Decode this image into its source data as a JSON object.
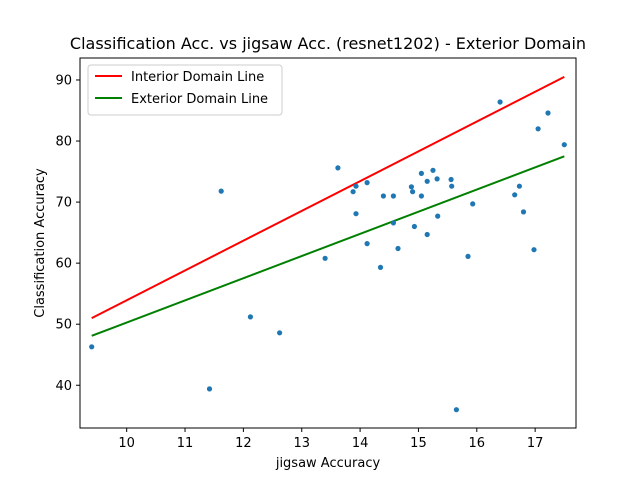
{
  "chart_data": {
    "type": "scatter",
    "title": "Classification Acc. vs jigsaw Acc. (resnet1202) - Exterior Domain",
    "xlabel": "jigsaw Accuracy",
    "ylabel": "Classification Accuracy",
    "xlim": [
      9.2,
      17.7
    ],
    "ylim": [
      33.0,
      93.6
    ],
    "xticks": [
      10,
      11,
      12,
      13,
      14,
      15,
      16,
      17
    ],
    "yticks": [
      40,
      50,
      60,
      70,
      80,
      90
    ],
    "grid": false,
    "legend_position": "top-left",
    "points_color": "#1f77b4",
    "points": [
      {
        "x": 9.4,
        "y": 46.3
      },
      {
        "x": 11.42,
        "y": 39.4
      },
      {
        "x": 11.62,
        "y": 71.8
      },
      {
        "x": 12.12,
        "y": 51.2
      },
      {
        "x": 12.62,
        "y": 48.6
      },
      {
        "x": 13.4,
        "y": 60.8
      },
      {
        "x": 13.62,
        "y": 75.6
      },
      {
        "x": 13.88,
        "y": 71.7
      },
      {
        "x": 13.93,
        "y": 72.6
      },
      {
        "x": 13.93,
        "y": 68.1
      },
      {
        "x": 14.12,
        "y": 73.2
      },
      {
        "x": 14.12,
        "y": 63.2
      },
      {
        "x": 14.35,
        "y": 59.3
      },
      {
        "x": 14.4,
        "y": 71.0
      },
      {
        "x": 14.57,
        "y": 71.0
      },
      {
        "x": 14.57,
        "y": 66.6
      },
      {
        "x": 14.65,
        "y": 62.4
      },
      {
        "x": 14.88,
        "y": 72.5
      },
      {
        "x": 14.9,
        "y": 71.7
      },
      {
        "x": 14.93,
        "y": 66.0
      },
      {
        "x": 15.05,
        "y": 74.7
      },
      {
        "x": 15.05,
        "y": 71.0
      },
      {
        "x": 15.15,
        "y": 73.4
      },
      {
        "x": 15.15,
        "y": 64.7
      },
      {
        "x": 15.25,
        "y": 75.2
      },
      {
        "x": 15.32,
        "y": 73.8
      },
      {
        "x": 15.33,
        "y": 67.7
      },
      {
        "x": 15.56,
        "y": 73.7
      },
      {
        "x": 15.57,
        "y": 72.6
      },
      {
        "x": 15.65,
        "y": 36.0
      },
      {
        "x": 15.85,
        "y": 61.1
      },
      {
        "x": 15.93,
        "y": 69.7
      },
      {
        "x": 16.4,
        "y": 86.4
      },
      {
        "x": 16.65,
        "y": 71.2
      },
      {
        "x": 16.73,
        "y": 72.6
      },
      {
        "x": 16.8,
        "y": 68.4
      },
      {
        "x": 16.98,
        "y": 62.2
      },
      {
        "x": 17.05,
        "y": 82.0
      },
      {
        "x": 17.22,
        "y": 84.6
      },
      {
        "x": 17.5,
        "y": 79.4
      }
    ],
    "series": [
      {
        "name": "Interior Domain Line",
        "color": "#ff0000",
        "x": [
          9.4,
          17.5
        ],
        "y": [
          51.0,
          90.5
        ]
      },
      {
        "name": "Exterior Domain Line",
        "color": "#008000",
        "x": [
          9.4,
          17.5
        ],
        "y": [
          48.1,
          77.5
        ]
      }
    ]
  }
}
